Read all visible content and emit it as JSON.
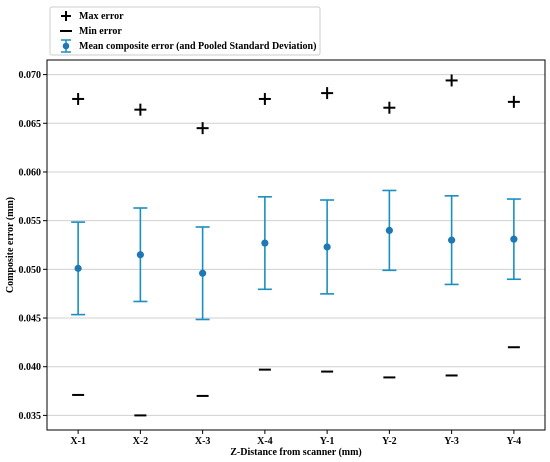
{
  "chart_data": {
    "type": "scatter",
    "xlabel": "Z-Distance from scanner (mm)",
    "ylabel": "Composite error (mm)",
    "categories": [
      "X-1",
      "X-2",
      "X-3",
      "X-4",
      "Y-1",
      "Y-2",
      "Y-3",
      "Y-4"
    ],
    "ylim": [
      0.0335,
      0.0715
    ],
    "yticks": [
      "0.035",
      "0.040",
      "0.045",
      "0.050",
      "0.055",
      "0.060",
      "0.065",
      "0.070"
    ],
    "grid": "horizontal",
    "legend": "top-left, above plot",
    "series": [
      {
        "name": "Max error",
        "marker": "+",
        "values": [
          0.0675,
          0.0664,
          0.0645,
          0.0675,
          0.0681,
          0.0666,
          0.0694,
          0.0672
        ]
      },
      {
        "name": "Min error",
        "marker": "_",
        "values": [
          0.0371,
          0.035,
          0.037,
          0.0397,
          0.0395,
          0.0389,
          0.0391,
          0.042
        ]
      },
      {
        "name": "Mean composite error (and Pooled Standard Deviation)",
        "marker": "errorbar",
        "values": [
          0.0501,
          0.0515,
          0.0496,
          0.0527,
          0.0523,
          0.054,
          0.053,
          0.0531
        ],
        "sd": [
          0.00475,
          0.0048,
          0.00475,
          0.00475,
          0.00482,
          0.0041,
          0.00455,
          0.00412
        ]
      }
    ],
    "colors": {
      "mean": "#1f77b4",
      "errorbar": "#1a8fc0",
      "grid": "#d0d0d0",
      "marker": "#000000"
    }
  }
}
